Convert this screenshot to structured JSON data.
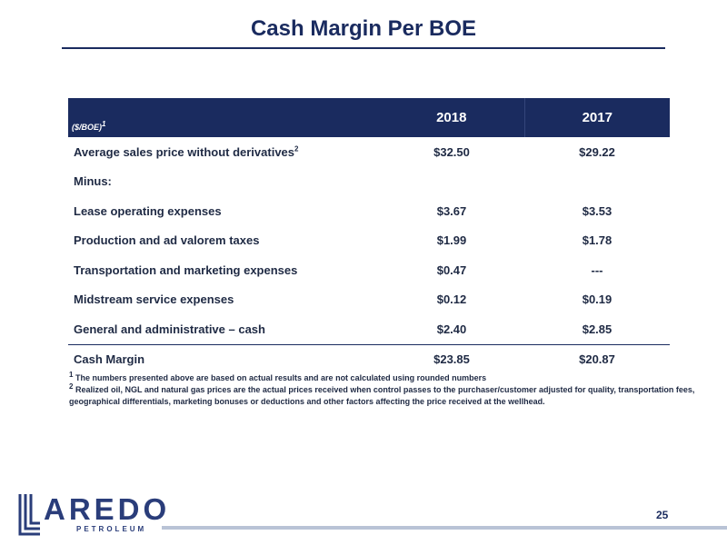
{
  "slide": {
    "title": "Cash Margin Per BOE",
    "page_number": "25"
  },
  "table": {
    "header_label": "($/BOE)",
    "header_label_sup": "1",
    "years": [
      "2018",
      "2017"
    ],
    "rows": [
      {
        "label": "Average sales price without derivatives",
        "sup": "2",
        "v2018": "$32.50",
        "v2017": "$29.22"
      },
      {
        "label": "Minus:",
        "sup": "",
        "v2018": "",
        "v2017": ""
      },
      {
        "label": "Lease operating expenses",
        "sup": "",
        "v2018": "$3.67",
        "v2017": "$3.53"
      },
      {
        "label": "Production and ad valorem taxes",
        "sup": "",
        "v2018": "$1.99",
        "v2017": "$1.78"
      },
      {
        "label": "Transportation and marketing expenses",
        "sup": "",
        "v2018": "$0.47",
        "v2017": "---"
      },
      {
        "label": "Midstream service expenses",
        "sup": "",
        "v2018": "$0.12",
        "v2017": "$0.19"
      },
      {
        "label": "General and administrative – cash",
        "sup": "",
        "v2018": "$2.40",
        "v2017": "$2.85"
      },
      {
        "label": "Cash Margin",
        "sup": "",
        "v2018": "$23.85",
        "v2017": "$20.87"
      }
    ]
  },
  "footnotes": {
    "fn1_mark": "1",
    "fn1_text": "The numbers presented above are based on actual results and are not calculated using rounded numbers",
    "fn2_mark": "2",
    "fn2_text": "Realized oil, NGL and natural gas prices are the actual prices received when control passes to the purchaser/customer adjusted for quality, transportation fees, geographical differentials, marketing bonuses or deductions and other factors affecting the price received at the wellhead."
  },
  "logo": {
    "word": "AREDO",
    "sub": "PETROLEUM",
    "icon": "stacked-l-icon",
    "color": "#2a3d7a"
  },
  "colors": {
    "brand_navy": "#1a2b5f",
    "footer_bar": "#b9c3d6"
  }
}
